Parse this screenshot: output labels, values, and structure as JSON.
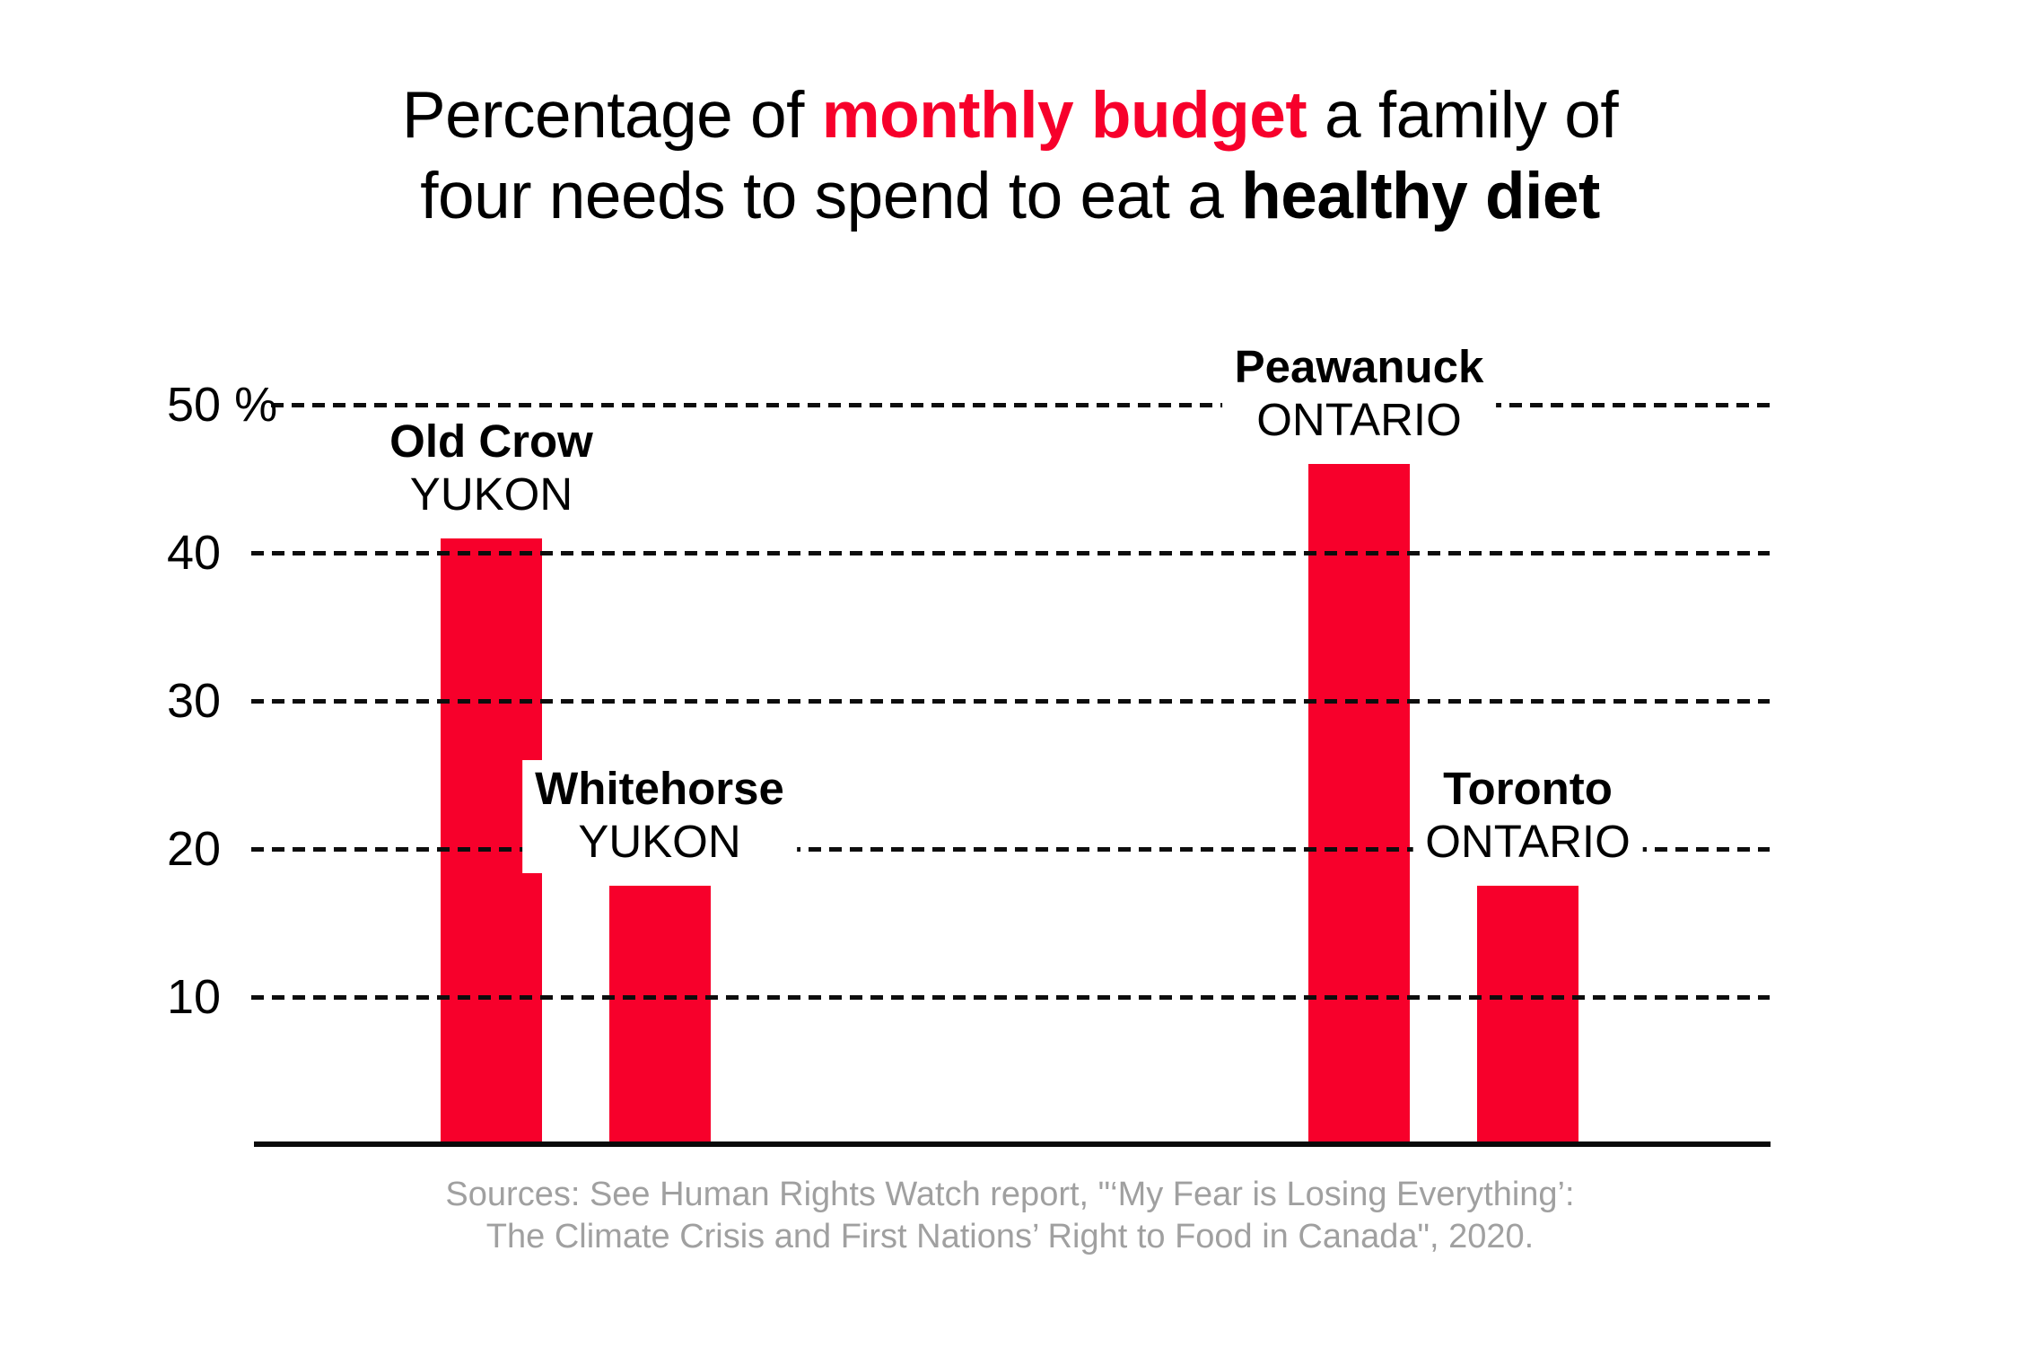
{
  "title": {
    "line1_pre": "Percentage of ",
    "line1_highlight": "monthly budget",
    "line1_post": " a family of",
    "line2_pre": "four needs to spend to eat a ",
    "line2_bold": "healthy diet",
    "highlight_color": "#f7002b"
  },
  "chart_data": {
    "type": "bar",
    "title": "Percentage of monthly budget a family of four needs to spend to eat a healthy diet",
    "categories": [
      "Old Crow",
      "Whitehorse",
      "Peawanuck",
      "Toronto"
    ],
    "regions": [
      "YUKON",
      "YUKON",
      "ONTARIO",
      "ONTARIO"
    ],
    "values": [
      41,
      17.5,
      46,
      17.5
    ],
    "unit": "%",
    "ylim": [
      0,
      50
    ],
    "yticks": [
      50,
      40,
      30,
      20,
      10
    ],
    "ytick_labels": [
      "50 %",
      "40",
      "30",
      "20",
      "10"
    ],
    "grid": "horizontal-dashed",
    "legend": "none",
    "bar_color": "#f7002b",
    "groups": [
      {
        "label": "Yukon",
        "bars": [
          "Old Crow",
          "Whitehorse"
        ]
      },
      {
        "label": "Ontario",
        "bars": [
          "Peawanuck",
          "Toronto"
        ]
      }
    ]
  },
  "source": {
    "line1": "Sources: See Human Rights Watch report, \"‘My Fear is Losing Everything’:",
    "line2": "The Climate Crisis and First Nations’ Right to Food in Canada\", 2020."
  }
}
